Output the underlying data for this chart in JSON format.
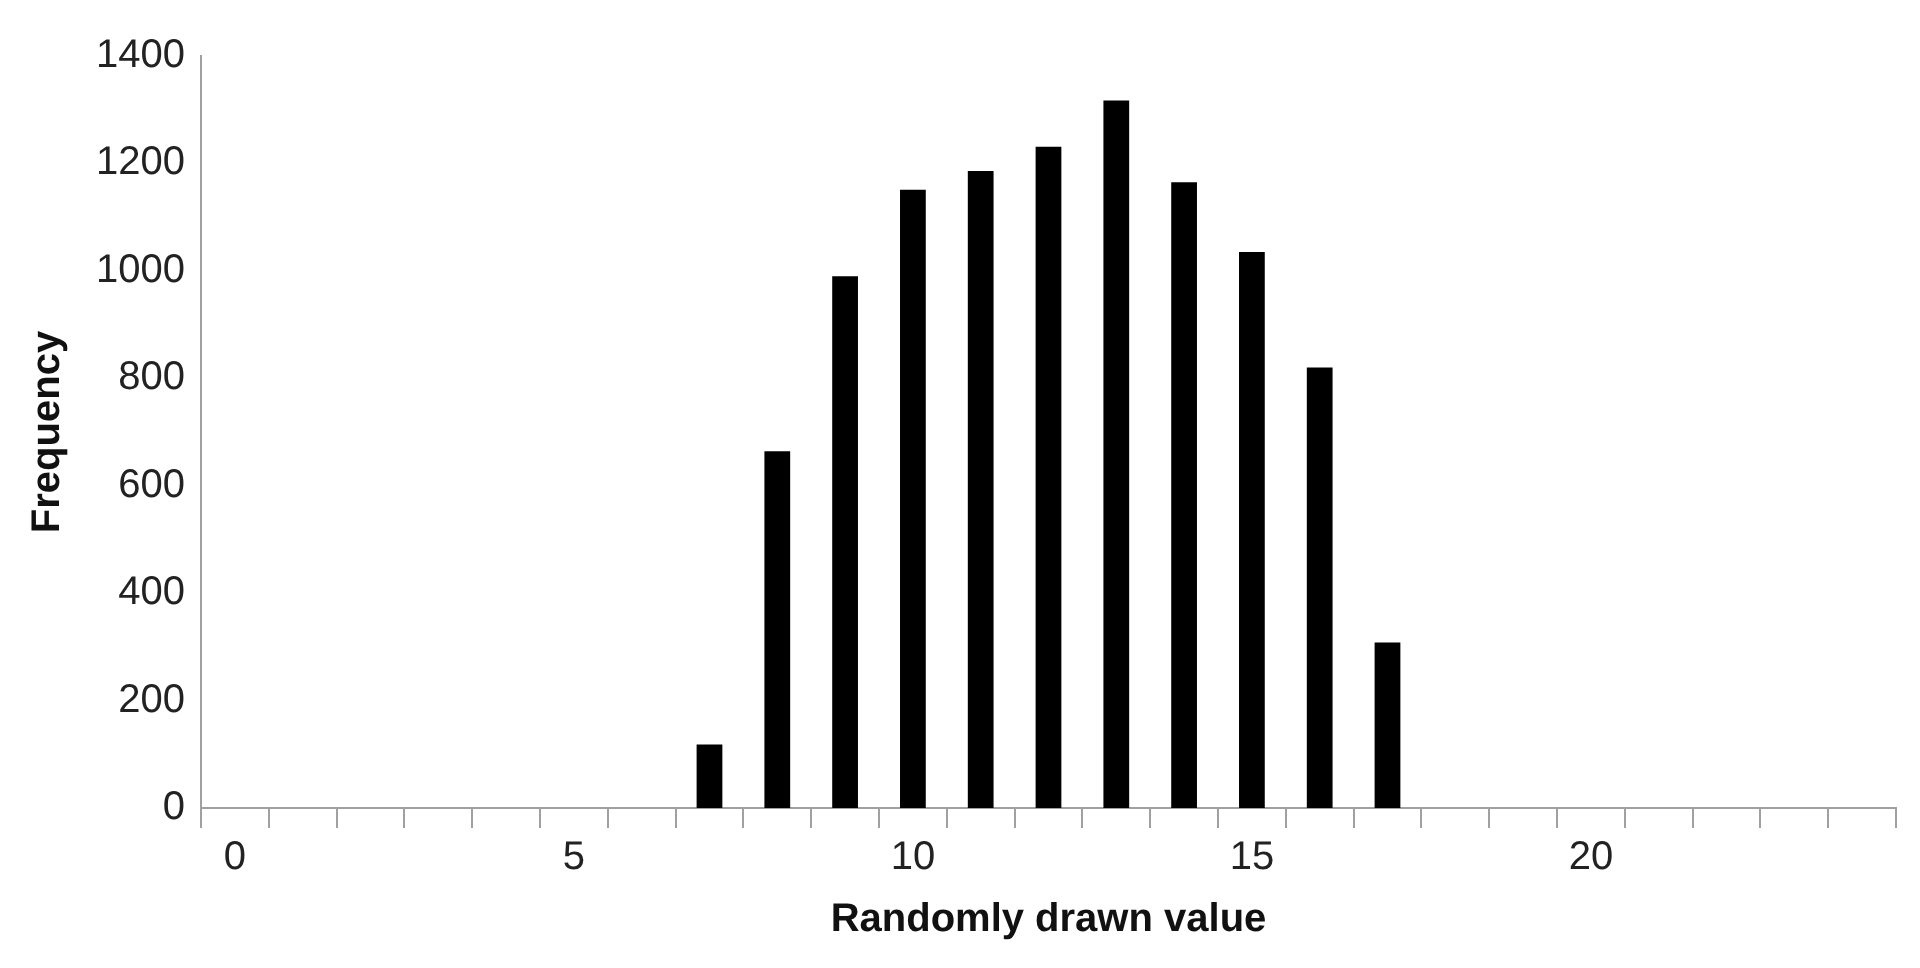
{
  "chart_data": {
    "type": "bar",
    "xlabel": "Randomly drawn value",
    "ylabel": "Frequency",
    "categories": [
      "0",
      null,
      null,
      null,
      null,
      "5",
      null,
      null,
      null,
      null,
      "10",
      null,
      null,
      null,
      null,
      "15",
      null,
      null,
      null,
      null,
      "20",
      null,
      null,
      null,
      null
    ],
    "values": [
      0,
      0,
      0,
      0,
      0,
      0,
      0,
      118,
      664,
      990,
      1151,
      1186,
      1231,
      1317,
      1165,
      1035,
      820,
      308,
      0,
      0,
      0,
      0,
      0,
      0,
      0
    ],
    "color": "#000000",
    "ylim": [
      0,
      1400
    ],
    "yticks": [
      0,
      200,
      400,
      600,
      800,
      1000,
      1200,
      1400
    ],
    "grid": false,
    "legend": false
  }
}
